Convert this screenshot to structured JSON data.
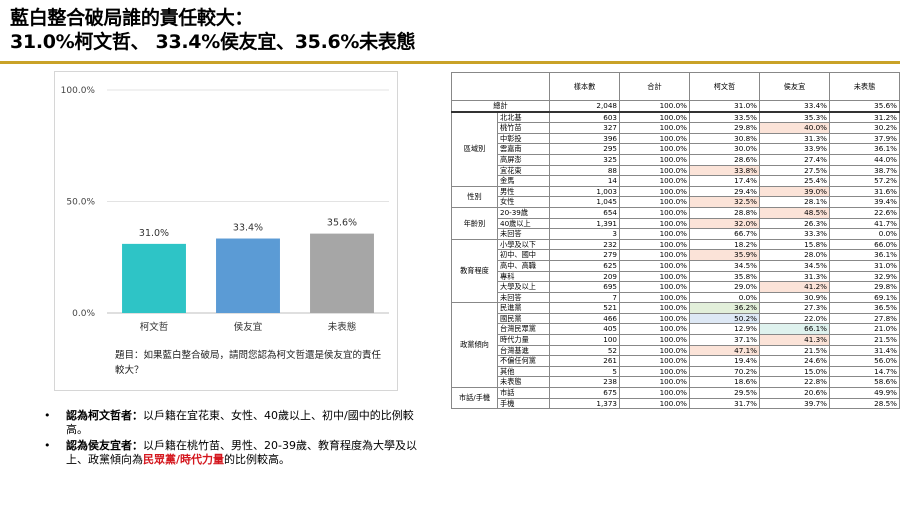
{
  "title": {
    "line1": "藍白整合破局誰的責任較大：",
    "line2": "31.0%柯文哲、 33.4%侯友宜、35.6%未表態"
  },
  "chart_data": {
    "type": "bar",
    "categories": [
      "柯文哲",
      "侯友宜",
      "未表態"
    ],
    "values": [
      31.0,
      33.4,
      35.6
    ],
    "value_labels": [
      "31.0%",
      "33.4%",
      "35.6%"
    ],
    "colors": [
      "#2ec4c6",
      "#5b9bd5",
      "#a6a6a6"
    ],
    "ylim": [
      0,
      100
    ],
    "yticks": [
      0,
      50,
      100
    ],
    "ytick_labels": [
      "0.0%",
      "50.0%",
      "100.0%"
    ],
    "grid": true
  },
  "note": "題目：如果藍白整合破局，請問您認為柯文哲還是侯友宜的責任較大？",
  "bullets": [
    {
      "bold": "認為柯文哲者：",
      "text": "以戶籍在宜花東、女性、40歲以上、初中/國中的比例較高。"
    },
    {
      "bold": "認為侯友宜者：",
      "text_before": "以戶籍在桃竹苗、男性、20-39歲、教育程度為大學及以上、政黨傾向為",
      "highlight": "民眾黨/時代力量",
      "text_after": "的比例較高。"
    }
  ],
  "table": {
    "headers": [
      "",
      "",
      "樣本數",
      "合計",
      "柯文哲",
      "侯友宜",
      "未表態"
    ],
    "total": {
      "label": "總計",
      "cells": [
        "2,048",
        "100.0%",
        "31.0%",
        "33.4%",
        "35.6%"
      ]
    },
    "groups": [
      {
        "name": "區域別",
        "rows": [
          {
            "sub": "北北基",
            "cells": [
              "603",
              "100.0%",
              "33.5%",
              "35.3%",
              "31.2%"
            ],
            "hl": [
              null,
              null,
              null,
              null,
              null
            ]
          },
          {
            "sub": "桃竹苗",
            "cells": [
              "327",
              "100.0%",
              "29.8%",
              "40.0%",
              "30.2%"
            ],
            "hl": [
              null,
              null,
              null,
              "pink",
              null
            ]
          },
          {
            "sub": "中彰投",
            "cells": [
              "396",
              "100.0%",
              "30.8%",
              "31.3%",
              "37.9%"
            ],
            "hl": [
              null,
              null,
              null,
              null,
              null
            ]
          },
          {
            "sub": "雲嘉南",
            "cells": [
              "295",
              "100.0%",
              "30.0%",
              "33.9%",
              "36.1%"
            ],
            "hl": [
              null,
              null,
              null,
              null,
              null
            ]
          },
          {
            "sub": "高屏澎",
            "cells": [
              "325",
              "100.0%",
              "28.6%",
              "27.4%",
              "44.0%"
            ],
            "hl": [
              null,
              null,
              null,
              null,
              null
            ]
          },
          {
            "sub": "宜花東",
            "cells": [
              "88",
              "100.0%",
              "33.8%",
              "27.5%",
              "38.7%"
            ],
            "hl": [
              null,
              null,
              "pink",
              null,
              null
            ]
          },
          {
            "sub": "金馬",
            "cells": [
              "14",
              "100.0%",
              "17.4%",
              "25.4%",
              "57.2%"
            ],
            "hl": [
              null,
              null,
              null,
              null,
              null
            ]
          }
        ]
      },
      {
        "name": "性別",
        "rows": [
          {
            "sub": "男性",
            "cells": [
              "1,003",
              "100.0%",
              "29.4%",
              "39.0%",
              "31.6%"
            ],
            "hl": [
              null,
              null,
              null,
              "pink",
              null
            ]
          },
          {
            "sub": "女性",
            "cells": [
              "1,045",
              "100.0%",
              "32.5%",
              "28.1%",
              "39.4%"
            ],
            "hl": [
              null,
              null,
              "pink",
              null,
              null
            ]
          }
        ]
      },
      {
        "name": "年齡別",
        "rows": [
          {
            "sub": "20-39歲",
            "cells": [
              "654",
              "100.0%",
              "28.8%",
              "48.5%",
              "22.6%"
            ],
            "hl": [
              null,
              null,
              null,
              "pink",
              null
            ]
          },
          {
            "sub": "40歲以上",
            "cells": [
              "1,391",
              "100.0%",
              "32.0%",
              "26.3%",
              "41.7%"
            ],
            "hl": [
              null,
              null,
              "pink",
              null,
              null
            ]
          },
          {
            "sub": "未回答",
            "cells": [
              "3",
              "100.0%",
              "66.7%",
              "33.3%",
              "0.0%"
            ],
            "hl": [
              null,
              null,
              null,
              null,
              null
            ]
          }
        ]
      },
      {
        "name": "教育程度",
        "rows": [
          {
            "sub": "小學及以下",
            "cells": [
              "232",
              "100.0%",
              "18.2%",
              "15.8%",
              "66.0%"
            ],
            "hl": [
              null,
              null,
              null,
              null,
              null
            ]
          },
          {
            "sub": "初中、國中",
            "cells": [
              "279",
              "100.0%",
              "35.9%",
              "28.0%",
              "36.1%"
            ],
            "hl": [
              null,
              null,
              "pink",
              null,
              null
            ]
          },
          {
            "sub": "高中、高職",
            "cells": [
              "625",
              "100.0%",
              "34.5%",
              "34.5%",
              "31.0%"
            ],
            "hl": [
              null,
              null,
              null,
              null,
              null
            ]
          },
          {
            "sub": "專科",
            "cells": [
              "209",
              "100.0%",
              "35.8%",
              "31.3%",
              "32.9%"
            ],
            "hl": [
              null,
              null,
              null,
              null,
              null
            ]
          },
          {
            "sub": "大學及以上",
            "cells": [
              "695",
              "100.0%",
              "29.0%",
              "41.2%",
              "29.8%"
            ],
            "hl": [
              null,
              null,
              null,
              "pink",
              null
            ]
          },
          {
            "sub": "未回答",
            "cells": [
              "7",
              "100.0%",
              "0.0%",
              "30.9%",
              "69.1%"
            ],
            "hl": [
              null,
              null,
              null,
              null,
              null
            ]
          }
        ]
      },
      {
        "name": "政黨傾向",
        "rows": [
          {
            "sub": "民進黨",
            "cells": [
              "521",
              "100.0%",
              "36.2%",
              "27.3%",
              "36.5%"
            ],
            "hl": [
              null,
              null,
              "green",
              null,
              null
            ]
          },
          {
            "sub": "國民黨",
            "cells": [
              "466",
              "100.0%",
              "50.2%",
              "22.0%",
              "27.8%"
            ],
            "hl": [
              null,
              null,
              "blue",
              null,
              null
            ]
          },
          {
            "sub": "台灣民眾黨",
            "cells": [
              "405",
              "100.0%",
              "12.9%",
              "66.1%",
              "21.0%"
            ],
            "hl": [
              null,
              null,
              null,
              "teal",
              null
            ]
          },
          {
            "sub": "時代力量",
            "cells": [
              "100",
              "100.0%",
              "37.1%",
              "41.3%",
              "21.5%"
            ],
            "hl": [
              null,
              null,
              null,
              "pink",
              null
            ]
          },
          {
            "sub": "台灣基進",
            "cells": [
              "52",
              "100.0%",
              "47.1%",
              "21.5%",
              "31.4%"
            ],
            "hl": [
              null,
              null,
              "pink",
              null,
              null
            ]
          },
          {
            "sub": "不偏任何黨",
            "cells": [
              "261",
              "100.0%",
              "19.4%",
              "24.6%",
              "56.0%"
            ],
            "hl": [
              null,
              null,
              null,
              null,
              null
            ]
          },
          {
            "sub": "其他",
            "cells": [
              "5",
              "100.0%",
              "70.2%",
              "15.0%",
              "14.7%"
            ],
            "hl": [
              null,
              null,
              null,
              null,
              null
            ]
          },
          {
            "sub": "未表態",
            "cells": [
              "238",
              "100.0%",
              "18.6%",
              "22.8%",
              "58.6%"
            ],
            "hl": [
              null,
              null,
              null,
              null,
              null
            ]
          }
        ]
      },
      {
        "name": "市話/手機",
        "rows": [
          {
            "sub": "市話",
            "cells": [
              "675",
              "100.0%",
              "29.5%",
              "20.6%",
              "49.9%"
            ],
            "hl": [
              null,
              null,
              null,
              null,
              null
            ]
          },
          {
            "sub": "手機",
            "cells": [
              "1,373",
              "100.0%",
              "31.7%",
              "39.7%",
              "28.5%"
            ],
            "hl": [
              null,
              null,
              null,
              null,
              null
            ]
          }
        ]
      }
    ]
  }
}
